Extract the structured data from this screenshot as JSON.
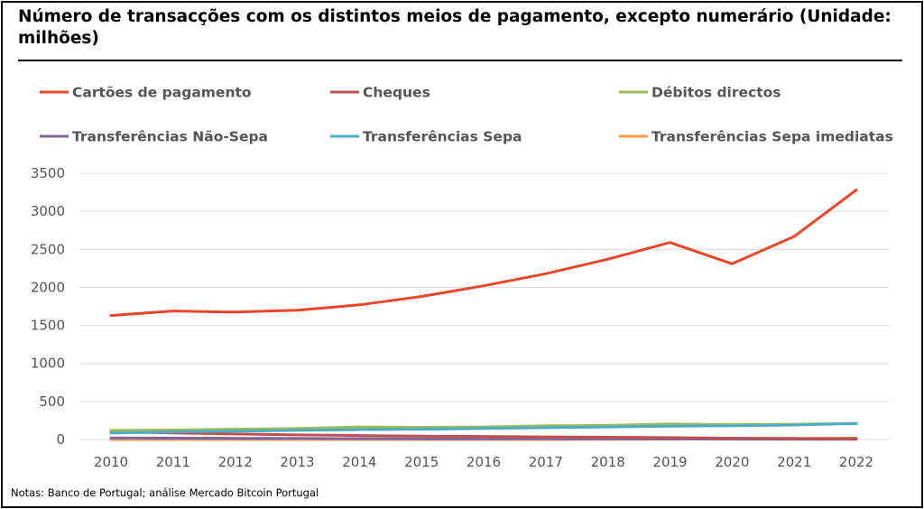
{
  "chart_data": {
    "type": "line",
    "title": "Número de transacções com os distintos meios de pagamento, excepto numerário (Unidade: milhões)",
    "note": "Notas: Banco de Portugal; análise Mercado Bitcoin Portugal",
    "x": [
      "2010",
      "2011",
      "2012",
      "2013",
      "2014",
      "2015",
      "2016",
      "2017",
      "2018",
      "2019",
      "2020",
      "2021",
      "2022"
    ],
    "ylim": [
      0,
      3500
    ],
    "yticks": [
      0,
      500,
      1000,
      1500,
      2000,
      2500,
      3000,
      3500
    ],
    "grid": true,
    "legend_position": "top",
    "series": [
      {
        "name": "Cartões de pagamento",
        "color": "#E8472A",
        "values": [
          1630,
          1690,
          1675,
          1700,
          1770,
          1880,
          2020,
          2180,
          2370,
          2590,
          2310,
          2670,
          3280
        ]
      },
      {
        "name": "Cheques",
        "color": "#C0504D",
        "values": [
          100,
          85,
          72,
          60,
          52,
          45,
          40,
          35,
          30,
          25,
          18,
          14,
          12
        ]
      },
      {
        "name": "Débitos directos",
        "color": "#9BBB59",
        "values": [
          120,
          125,
          135,
          145,
          165,
          160,
          165,
          180,
          185,
          205,
          195,
          200,
          210
        ]
      },
      {
        "name": "Transferências Não-Sepa",
        "color": "#8064A2",
        "values": [
          20,
          18,
          16,
          14,
          12,
          10,
          9,
          8,
          7,
          6,
          5,
          4,
          4
        ]
      },
      {
        "name": "Transferências Sepa",
        "color": "#4BACC6",
        "values": [
          85,
          100,
          110,
          120,
          130,
          135,
          145,
          155,
          165,
          175,
          180,
          190,
          210
        ]
      },
      {
        "name": "Transferências Sepa imediatas",
        "color": "#F79646",
        "values": [
          0,
          0,
          0,
          0,
          0,
          0,
          0,
          0,
          2,
          5,
          8,
          12,
          18
        ]
      }
    ]
  }
}
